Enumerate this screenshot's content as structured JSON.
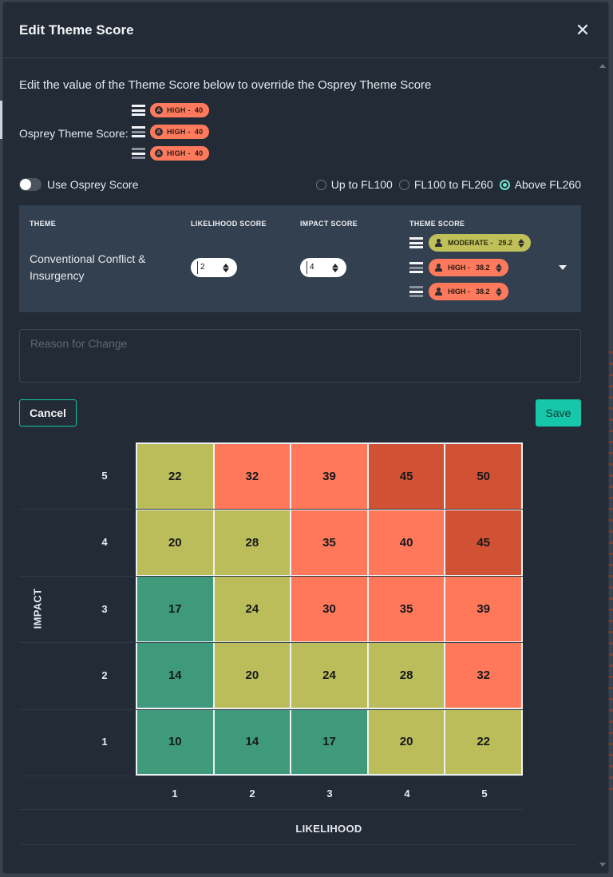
{
  "modal": {
    "title": "Edit Theme Score",
    "close_icon": "close-icon"
  },
  "intro": "Edit the value of the Theme Score below to override the Osprey Theme Score",
  "osprey": {
    "label": "Osprey Theme Score:",
    "scores": [
      {
        "badge": "A",
        "level": "HIGH -",
        "value": "40"
      },
      {
        "badge": "A",
        "level": "HIGH -",
        "value": "40"
      },
      {
        "badge": "A",
        "level": "HIGH -",
        "value": "40"
      }
    ]
  },
  "toggle": {
    "label": "Use Osprey Score",
    "on": false
  },
  "radios": [
    {
      "label": "Up to FL100",
      "selected": false
    },
    {
      "label": "FL100 to FL260",
      "selected": false
    },
    {
      "label": "Above FL260",
      "selected": true
    }
  ],
  "table": {
    "headers": {
      "theme": "THEME",
      "likelihood": "LIKELIHOOD SCORE",
      "impact": "IMPACT SCORE",
      "theme_score": "THEME SCORE"
    },
    "row": {
      "theme": "Conventional Conflict & Insurgency",
      "likelihood": "2",
      "impact": "4",
      "scores": [
        {
          "level": "MODERATE -",
          "value": "29.2",
          "color": "#bfc05a"
        },
        {
          "level": "HIGH -",
          "value": "38.2",
          "color": "#ff7a5c"
        },
        {
          "level": "HIGH -",
          "value": "38.2",
          "color": "#ff7a5c"
        }
      ]
    }
  },
  "reason": {
    "placeholder": "Reason for Change"
  },
  "buttons": {
    "cancel": "Cancel",
    "save": "Save"
  },
  "chart_data": {
    "type": "heatmap",
    "xlabel": "LIKELIHOOD",
    "ylabel": "IMPACT",
    "x": [
      "1",
      "2",
      "3",
      "4",
      "5"
    ],
    "y": [
      "5",
      "4",
      "3",
      "2",
      "1"
    ],
    "values": [
      [
        22,
        32,
        39,
        45,
        50
      ],
      [
        20,
        28,
        35,
        40,
        45
      ],
      [
        17,
        24,
        30,
        35,
        39
      ],
      [
        14,
        20,
        24,
        28,
        32
      ],
      [
        10,
        14,
        17,
        20,
        22
      ]
    ],
    "color_classes": [
      [
        "yellow",
        "orange",
        "orange",
        "red",
        "red"
      ],
      [
        "yellow",
        "yellow",
        "orange",
        "orange",
        "red"
      ],
      [
        "green",
        "yellow",
        "orange",
        "orange",
        "orange"
      ],
      [
        "green",
        "yellow",
        "yellow",
        "yellow",
        "orange"
      ],
      [
        "green",
        "green",
        "green",
        "yellow",
        "yellow"
      ]
    ],
    "colors": {
      "green": "#3f9a7c",
      "yellow": "#bbbc5a",
      "orange": "#ff785a",
      "red": "#d05134"
    }
  }
}
